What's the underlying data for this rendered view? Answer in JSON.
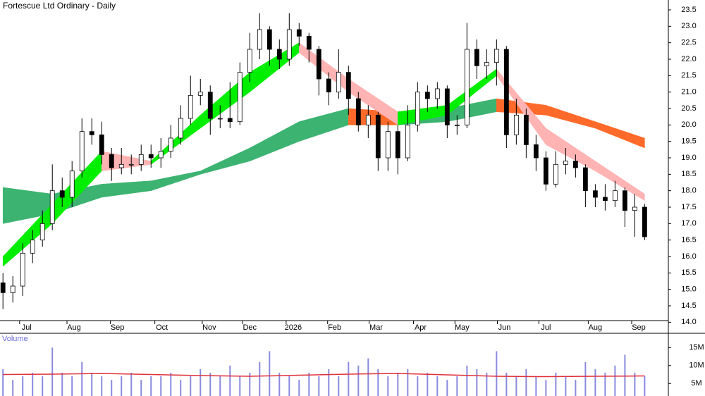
{
  "chart_data": {
    "type": "candlestick",
    "title": "Fortescue Ltd Ordinary - Daily",
    "xlim": [
      -0.3,
      67.4
    ],
    "xticks": [
      {
        "value": 2.4,
        "label": "Jul"
      },
      {
        "value": 7.2,
        "label": "Aug"
      },
      {
        "value": 11.6,
        "label": "Sep"
      },
      {
        "value": 16.1,
        "label": "Oct"
      },
      {
        "value": 20.9,
        "label": "Nov"
      },
      {
        "value": 25,
        "label": "Dec"
      },
      {
        "value": 29.4,
        "label": "2026"
      },
      {
        "value": 33.6,
        "label": "Feb"
      },
      {
        "value": 37.8,
        "label": "Mar"
      },
      {
        "value": 42.3,
        "label": "Apr"
      },
      {
        "value": 46.5,
        "label": "May"
      },
      {
        "value": 50.8,
        "label": "Jun"
      },
      {
        "value": 55,
        "label": "Jul"
      },
      {
        "value": 60,
        "label": "Aug"
      },
      {
        "value": 64.4,
        "label": "Sep"
      }
    ],
    "ylim": [
      14.05,
      23.8
    ],
    "yticks": [
      {
        "value": 14,
        "label": "14.0"
      },
      14.5,
      {
        "value": 15,
        "label": "15.0"
      },
      15.5,
      {
        "value": 16,
        "label": "16.0"
      },
      16.5,
      {
        "value": 17,
        "label": "17.0"
      },
      17.5,
      {
        "value": 18,
        "label": "18.0"
      },
      18.5,
      {
        "value": 19,
        "label": "19.0"
      },
      19.5,
      {
        "value": 20,
        "label": "20.0"
      },
      20.5,
      {
        "value": 21,
        "label": "21.0"
      },
      21.5,
      {
        "value": 22,
        "label": "22.0"
      },
      22.5,
      {
        "value": 23,
        "label": "23.0"
      },
      23.5
    ],
    "up_color": "#ffffff",
    "down_color": "#000000",
    "open": [
      15.2,
      14.9,
      15.1,
      16.1,
      16.5,
      17.0,
      18.0,
      17.8,
      18.6,
      19.8,
      19.7,
      19.1,
      18.7,
      18.8,
      18.8,
      19.1,
      19.0,
      19.2,
      19.6,
      20.2,
      20.9,
      21.0,
      20.2,
      20.2,
      20.1,
      21.6,
      22.3,
      22.9,
      22.3,
      22.0,
      22.9,
      22.7,
      22.3,
      21.4,
      21.0,
      21.6,
      20.8,
      20.0,
      20.3,
      19.0,
      19.8,
      19.0,
      20.0,
      21.0,
      20.8,
      21.1,
      20.0,
      20.0,
      22.3,
      21.8,
      21.9,
      22.3,
      19.7,
      20.3,
      19.4,
      19.0,
      18.2,
      18.8,
      18.9,
      18.7,
      18.0,
      17.8,
      17.7,
      18.0,
      17.4,
      17.5
    ],
    "high": [
      15.5,
      15.4,
      16.4,
      16.8,
      17.4,
      18.8,
      18.4,
      18.9,
      20.2,
      20.2,
      20.1,
      19.3,
      19.3,
      19.1,
      19.4,
      19.4,
      19.6,
      20.0,
      20.6,
      21.5,
      21.4,
      21.2,
      20.6,
      21.3,
      21.9,
      22.8,
      23.4,
      23.0,
      22.6,
      23.4,
      23.1,
      22.8,
      22.4,
      21.6,
      22.3,
      21.8,
      21.0,
      20.6,
      20.4,
      20.1,
      20.0,
      20.6,
      21.3,
      21.2,
      21.3,
      21.2,
      20.3,
      23.1,
      22.6,
      22.3,
      22.6,
      22.4,
      20.8,
      20.5,
      19.7,
      19.2,
      19.2,
      19.3,
      19.1,
      18.8,
      18.2,
      18.2,
      18.3,
      18.1,
      17.9,
      17.6
    ],
    "low": [
      14.4,
      14.6,
      14.8,
      15.8,
      16.3,
      16.8,
      17.5,
      17.5,
      18.4,
      19.4,
      18.8,
      18.3,
      18.5,
      18.5,
      18.6,
      18.7,
      18.7,
      19.0,
      19.4,
      20.0,
      20.6,
      19.7,
      19.9,
      19.9,
      20.0,
      21.3,
      22.0,
      21.8,
      21.7,
      21.8,
      22.4,
      21.9,
      20.9,
      20.6,
      20.8,
      20.3,
      19.8,
      19.6,
      18.6,
      18.6,
      18.5,
      18.9,
      19.8,
      20.4,
      20.5,
      19.6,
      19.7,
      19.9,
      21.4,
      21.4,
      21.2,
      19.3,
      19.4,
      19.0,
      18.6,
      18.0,
      18.1,
      18.5,
      18.4,
      17.5,
      17.5,
      17.4,
      17.5,
      16.9,
      16.6,
      16.5
    ],
    "close": [
      14.9,
      15.1,
      16.1,
      16.5,
      17.0,
      18.0,
      17.8,
      18.6,
      19.8,
      19.7,
      19.1,
      18.7,
      18.8,
      18.8,
      19.1,
      19.0,
      19.2,
      19.6,
      20.2,
      20.9,
      21.0,
      20.2,
      20.2,
      20.1,
      21.6,
      22.3,
      22.9,
      22.3,
      22.0,
      22.9,
      22.7,
      22.3,
      21.4,
      21.0,
      21.6,
      20.8,
      20.0,
      20.3,
      19.0,
      19.8,
      19.0,
      20.0,
      21.0,
      20.8,
      21.1,
      20.0,
      20.0,
      22.3,
      21.8,
      21.9,
      22.3,
      19.7,
      20.3,
      19.4,
      19.0,
      18.2,
      18.8,
      18.9,
      18.7,
      18.0,
      17.8,
      17.7,
      18.0,
      17.4,
      17.5,
      16.6
    ],
    "ribbons": [
      {
        "x": [
          0,
          5,
          10,
          15,
          20,
          25,
          30,
          35,
          40,
          45,
          50,
          55,
          60,
          65
        ],
        "upper": [
          18.1,
          17.9,
          18.2,
          18.3,
          18.6,
          19.3,
          20.1,
          20.5,
          20.4,
          20.5,
          20.8,
          20.6,
          20.1,
          19.6
        ],
        "lower": [
          17.0,
          17.3,
          17.8,
          18.0,
          18.5,
          18.9,
          19.5,
          20.0,
          20.0,
          20.1,
          20.4,
          20.3,
          19.9,
          19.3
        ],
        "up_color": "#3cb371",
        "down_color": "#ff6a2a"
      },
      {
        "x": [
          0,
          5,
          10,
          15,
          20,
          25,
          30,
          35,
          40,
          45,
          50,
          55,
          60,
          65
        ],
        "upper": [
          16.0,
          17.6,
          19.2,
          18.9,
          20.3,
          21.6,
          22.5,
          21.4,
          20.4,
          20.6,
          21.7,
          19.9,
          18.9,
          17.9
        ],
        "lower": [
          15.7,
          17.0,
          18.6,
          18.8,
          19.9,
          21.0,
          22.2,
          21.0,
          20.0,
          20.3,
          21.5,
          19.4,
          18.6,
          17.7
        ],
        "up_color": "#00ee00",
        "down_color": "#ffb3b3"
      }
    ],
    "volume": {
      "label": "Volume",
      "color": "#8a8adf",
      "ma_color": "#e0303a",
      "ylim": [
        1.5,
        19
      ],
      "yticks": [
        {
          "value": 5,
          "label": "5M"
        },
        {
          "value": 10,
          "label": "10M"
        },
        {
          "value": 15,
          "label": "15M"
        }
      ],
      "values": [
        9,
        6,
        7,
        8,
        7,
        15,
        8,
        7,
        11,
        8,
        7,
        6,
        7,
        8,
        6,
        7,
        7,
        8,
        6,
        7,
        9,
        8,
        7,
        10,
        7,
        8,
        11,
        14,
        8,
        7,
        6,
        8,
        7,
        9,
        7,
        11,
        10,
        12,
        9,
        7,
        8,
        9,
        7,
        8,
        7,
        6,
        7,
        10,
        9,
        8,
        14,
        8,
        7,
        9,
        7,
        6,
        8,
        7,
        6,
        11,
        9,
        8,
        10,
        13,
        8,
        7
      ],
      "ma_x": [
        0,
        5,
        10,
        15,
        20,
        25,
        30,
        35,
        40,
        45,
        50,
        55,
        60,
        65
      ],
      "ma": [
        7.5,
        7.6,
        7.8,
        7.5,
        7.2,
        7.0,
        7.3,
        7.6,
        7.8,
        7.4,
        7.0,
        6.9,
        7.0,
        7.1
      ]
    }
  }
}
